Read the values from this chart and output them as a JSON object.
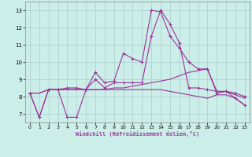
{
  "title": "",
  "xlabel": "Windchill (Refroidissement éolien,°C)",
  "ylabel": "",
  "xlim": [
    -0.5,
    23.5
  ],
  "ylim": [
    6.5,
    13.5
  ],
  "yticks": [
    7,
    8,
    9,
    10,
    11,
    12,
    13
  ],
  "xticks": [
    0,
    1,
    2,
    3,
    4,
    5,
    6,
    7,
    8,
    9,
    10,
    11,
    12,
    13,
    14,
    15,
    16,
    17,
    18,
    19,
    20,
    21,
    22,
    23
  ],
  "background_color": "#cceee8",
  "grid_color": "#aacccc",
  "line_color": "#993399",
  "line1_x": [
    0,
    1,
    2,
    3,
    4,
    5,
    6,
    7,
    8,
    9,
    10,
    11,
    12,
    13,
    14,
    15,
    16,
    17,
    18,
    19,
    20,
    21,
    22,
    23
  ],
  "line1_y": [
    8.2,
    6.8,
    8.4,
    8.4,
    8.5,
    8.5,
    8.4,
    9.4,
    8.8,
    8.9,
    10.5,
    10.2,
    10.0,
    13.0,
    12.9,
    11.5,
    10.8,
    10.0,
    9.6,
    9.6,
    8.2,
    8.3,
    7.9,
    7.5
  ],
  "line2_x": [
    0,
    1,
    2,
    3,
    4,
    5,
    6,
    7,
    8,
    9,
    10,
    11,
    12,
    13,
    14,
    15,
    16,
    17,
    18,
    19,
    20,
    21,
    22,
    23
  ],
  "line2_y": [
    8.2,
    6.8,
    8.4,
    8.4,
    6.8,
    6.8,
    8.4,
    9.0,
    8.5,
    8.8,
    8.8,
    8.8,
    8.8,
    11.5,
    13.0,
    12.2,
    11.1,
    8.5,
    8.5,
    8.4,
    8.3,
    8.3,
    8.2,
    8.0
  ],
  "line3_x": [
    0,
    1,
    2,
    3,
    4,
    5,
    6,
    7,
    8,
    9,
    10,
    11,
    12,
    13,
    14,
    15,
    16,
    17,
    18,
    19,
    20,
    21,
    22,
    23
  ],
  "line3_y": [
    8.2,
    8.2,
    8.4,
    8.4,
    8.4,
    8.4,
    8.4,
    8.4,
    8.4,
    8.5,
    8.5,
    8.6,
    8.7,
    8.8,
    8.9,
    9.0,
    9.2,
    9.4,
    9.5,
    9.6,
    8.3,
    8.3,
    8.1,
    7.9
  ],
  "line4_x": [
    0,
    1,
    2,
    3,
    4,
    5,
    6,
    7,
    8,
    9,
    10,
    11,
    12,
    13,
    14,
    15,
    16,
    17,
    18,
    19,
    20,
    21,
    22,
    23
  ],
  "line4_y": [
    8.2,
    8.2,
    8.4,
    8.4,
    8.4,
    8.4,
    8.4,
    8.4,
    8.4,
    8.4,
    8.4,
    8.4,
    8.4,
    8.4,
    8.4,
    8.3,
    8.2,
    8.1,
    8.0,
    7.9,
    8.1,
    8.1,
    7.9,
    7.5
  ]
}
